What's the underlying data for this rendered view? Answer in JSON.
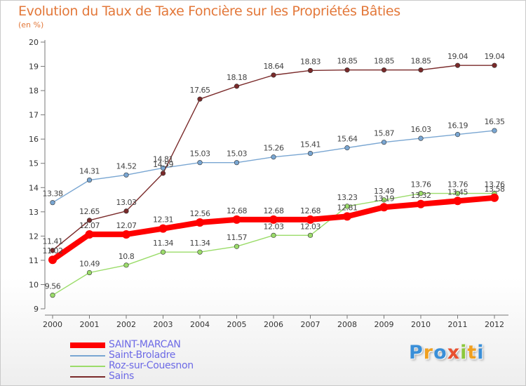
{
  "header": {
    "title": "Evolution du Taux de Taxe Foncière sur les Propriétés Bâties",
    "subtitle": "(en %)"
  },
  "chart_data": {
    "type": "line",
    "x": [
      "2000",
      "2001",
      "2002",
      "2003",
      "2004",
      "2005",
      "2006",
      "2007",
      "2008",
      "2009",
      "2010",
      "2011",
      "2012"
    ],
    "ylim": [
      9,
      20
    ],
    "yticks": [
      9,
      10,
      11,
      12,
      13,
      14,
      15,
      16,
      17,
      18,
      19,
      20
    ],
    "grid": false,
    "legend_position": "bottom-left",
    "series": [
      {
        "name": "SAINT-MARCAN",
        "color": "#ff0000",
        "values": [
          11.02,
          12.07,
          12.07,
          12.31,
          12.56,
          12.68,
          12.68,
          12.68,
          12.81,
          13.19,
          13.32,
          13.45,
          13.58
        ],
        "labels": [
          "11.02",
          "12.07",
          "12.07",
          "12.31",
          "12.56",
          "12.68",
          "12.68",
          "12.68",
          "12.81",
          "13.19",
          "13.32",
          "13.45",
          "13.58"
        ]
      },
      {
        "name": "Saint-Broladre",
        "color": "#79a6d2",
        "values": [
          13.38,
          14.31,
          14.52,
          14.81,
          15.03,
          15.03,
          15.26,
          15.41,
          15.64,
          15.87,
          16.03,
          16.19,
          16.35
        ],
        "labels": [
          "13.38",
          "14.31",
          "14.52",
          "14.81",
          "15.03",
          "15.03",
          "15.26",
          "15.41",
          "15.64",
          "15.87",
          "16.03",
          "16.19",
          "16.35"
        ]
      },
      {
        "name": "Roz-sur-Couesnon",
        "color": "#9bdc6a",
        "values": [
          9.56,
          10.49,
          10.8,
          11.34,
          11.34,
          11.57,
          12.03,
          12.03,
          13.23,
          13.49,
          13.76,
          13.76,
          13.76
        ],
        "labels": [
          "9.56",
          "10.49",
          "10.8",
          "11.34",
          "11.34",
          "11.57",
          "12.03",
          "12.03",
          "13.23",
          "13.49",
          "13.76",
          "13.76",
          "13.76"
        ]
      },
      {
        "name": "Sains",
        "color": "#7a2a2a",
        "values": [
          11.41,
          12.65,
          13.03,
          14.59,
          17.65,
          18.18,
          18.64,
          18.83,
          18.85,
          18.85,
          18.85,
          19.04,
          19.04
        ],
        "labels": [
          "11.41",
          "12.65",
          "13.03",
          "14.59",
          "17.65",
          "18.18",
          "18.64",
          "18.83",
          "18.85",
          "18.85",
          "18.85",
          "19.04",
          "19.04"
        ]
      }
    ]
  },
  "legend": {
    "items": [
      {
        "label": "SAINT-MARCAN",
        "color": "#ff0000"
      },
      {
        "label": "Saint-Broladre",
        "color": "#79a6d2"
      },
      {
        "label": "Roz-sur-Couesnon",
        "color": "#9bdc6a"
      },
      {
        "label": "Sains",
        "color": "#7a2a2a"
      }
    ]
  },
  "logo": {
    "letters": [
      "P",
      "r",
      "o",
      "x",
      "i",
      "t",
      "i"
    ],
    "colors": [
      "#3a8fd8",
      "#f0a020",
      "#3a8fd8",
      "#e85030",
      "#8cc83c",
      "#f0a020",
      "#3a8fd8"
    ]
  }
}
